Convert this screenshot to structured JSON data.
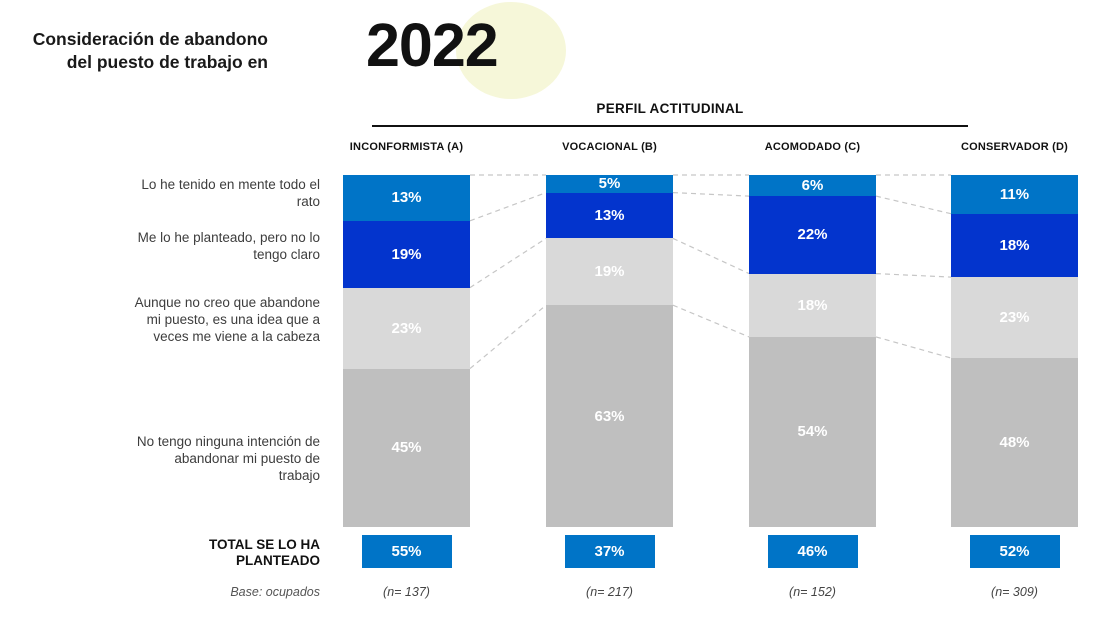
{
  "header": {
    "title": "Consideración de abandono\ndel puesto de trabajo en",
    "year": "2022",
    "group_label": "PERFIL ACTITUDINAL"
  },
  "chart_data": {
    "type": "bar",
    "stacked": true,
    "unit": "%",
    "title": "Consideración de abandono del puesto de trabajo en 2022",
    "group_axis_label": "PERFIL ACTITUDINAL",
    "categories": [
      "Lo he tenido en mente todo el rato",
      "Me lo he planteado, pero no lo tengo claro",
      "Aunque no creo que abandone mi puesto, es una idea que a veces me viene a la cabeza",
      "No tengo ninguna intención de abandonar mi puesto de trabajo"
    ],
    "columns": [
      {
        "label": "INCONFORMISTA (A)",
        "values": [
          13,
          19,
          23,
          45
        ],
        "total": "55%",
        "base": "(n= 137)"
      },
      {
        "label": "VOCACIONAL (B)",
        "values": [
          5,
          13,
          19,
          63
        ],
        "total": "37%",
        "base": "(n= 217)"
      },
      {
        "label": "ACOMODADO (C)",
        "values": [
          6,
          22,
          18,
          54
        ],
        "total": "46%",
        "base": "(n= 152)"
      },
      {
        "label": "CONSERVADOR (D)",
        "values": [
          11,
          18,
          23,
          48
        ],
        "total": "52%",
        "base": "(n= 309)"
      }
    ],
    "total_row_label": "TOTAL SE LO HA PLANTEADO",
    "base_row_label": "Base: ocupados",
    "segment_colors": [
      "#0074C7",
      "#0334CD",
      "#D9D9D9",
      "#BFBFBF"
    ],
    "colors": {
      "total_box": "#0074C7",
      "connector": "#C6C6C6",
      "year_circle": "#F6F7D9",
      "value_text": "#FFFFFF"
    },
    "legend": "none",
    "ylim": [
      0,
      100
    ]
  }
}
